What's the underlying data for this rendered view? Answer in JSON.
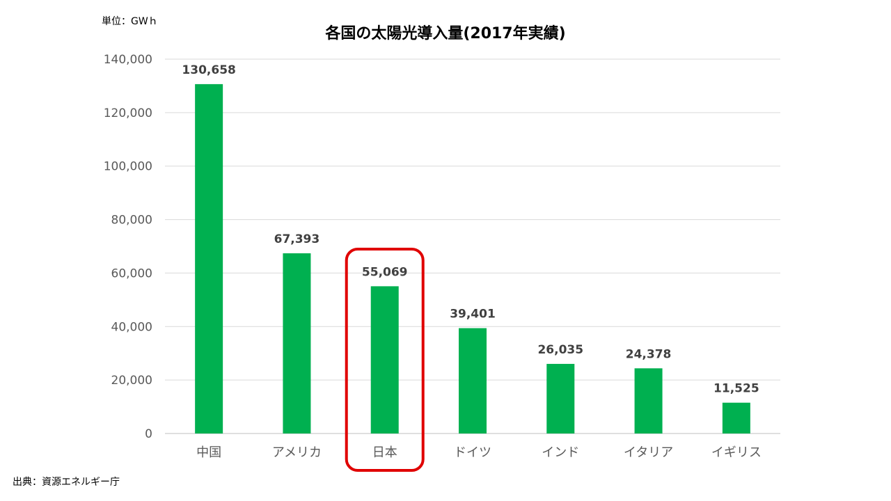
{
  "unit_label": "単位：GWｈ",
  "source_label": "出典：資源エネルギー庁",
  "highlight_color": "#E00000",
  "chart_data": {
    "type": "bar",
    "title": "各国の太陽光導入量(2017年実績)",
    "categories": [
      "中国",
      "アメリカ",
      "日本",
      "ドイツ",
      "インド",
      "イタリア",
      "イギリス"
    ],
    "values": [
      130658,
      67393,
      55069,
      39401,
      26035,
      24378,
      11525
    ],
    "data_labels": [
      "130,658",
      "67,393",
      "55,069",
      "39,401",
      "26,035",
      "24,378",
      "11,525"
    ],
    "y_ticks": [
      "0",
      "20,000",
      "40,000",
      "60,000",
      "80,000",
      "100,000",
      "120,000",
      "140,000"
    ],
    "ylim": [
      0,
      140000
    ],
    "y_tick_step": 20000,
    "grid": true,
    "legend": false,
    "bar_color": "#00B050",
    "highlighted_category": "日本"
  }
}
